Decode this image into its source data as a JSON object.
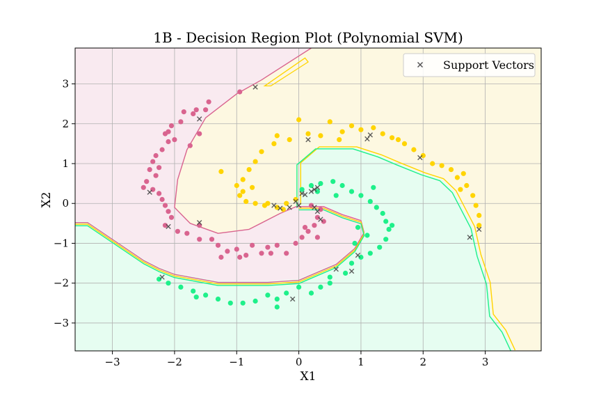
{
  "chart_data": {
    "type": "scatter",
    "title": "1B - Decision Region Plot (Polynomial SVM)",
    "xlabel": "X1",
    "ylabel": "X2",
    "xlim": [
      -3.6,
      3.9
    ],
    "ylim": [
      -3.7,
      3.9
    ],
    "xticks": [
      -3,
      -2,
      -1,
      0,
      1,
      2,
      3
    ],
    "yticks": [
      -3,
      -2,
      -1,
      0,
      1,
      2,
      3
    ],
    "grid": true,
    "legend": {
      "position": "top-right",
      "entries": [
        "Support Vectors"
      ]
    },
    "colors": {
      "pink_class": "#d9648f",
      "yellow_class": "#ffd400",
      "green_class": "#1ef08a",
      "pink_region": "#f9eaf0",
      "yellow_region": "#fdf8e1",
      "green_region": "#e6fdf1",
      "support_vector": "#444444"
    },
    "regions": {
      "pink": [
        [
          -3.6,
          -0.45
        ],
        [
          -3.4,
          -0.45
        ],
        [
          -2.5,
          -1.4
        ],
        [
          -2.25,
          -1.6
        ],
        [
          -2.0,
          -1.75
        ],
        [
          -1.3,
          -1.95
        ],
        [
          -0.5,
          -1.95
        ],
        [
          0.0,
          -1.9
        ],
        [
          0.3,
          -1.7
        ],
        [
          0.6,
          -1.5
        ],
        [
          0.9,
          -1.1
        ],
        [
          1.05,
          -0.7
        ],
        [
          1.0,
          -0.4
        ],
        [
          0.7,
          -0.25
        ],
        [
          0.4,
          -0.05
        ],
        [
          0.0,
          -0.05
        ],
        [
          -0.3,
          -0.25
        ],
        [
          -0.8,
          -0.65
        ],
        [
          -1.3,
          -0.75
        ],
        [
          -1.75,
          -0.5
        ],
        [
          -2.0,
          -0.1
        ],
        [
          -1.95,
          0.6
        ],
        [
          -1.8,
          1.35
        ],
        [
          -1.5,
          2.15
        ],
        [
          -1.0,
          2.75
        ],
        [
          -0.6,
          3.1
        ],
        [
          0.2,
          3.9
        ],
        [
          -3.6,
          3.9
        ]
      ],
      "yellow": [
        [
          0.2,
          3.9
        ],
        [
          -0.6,
          3.1
        ],
        [
          -1.0,
          2.75
        ],
        [
          -1.5,
          2.15
        ],
        [
          -1.8,
          1.35
        ],
        [
          -1.95,
          0.6
        ],
        [
          -2.0,
          -0.1
        ],
        [
          -1.75,
          -0.5
        ],
        [
          -1.3,
          -0.75
        ],
        [
          -0.8,
          -0.65
        ],
        [
          -0.3,
          -0.25
        ],
        [
          0.0,
          -0.05
        ],
        [
          0.0,
          1.0
        ],
        [
          0.3,
          1.4
        ],
        [
          0.9,
          1.4
        ],
        [
          1.3,
          1.2
        ],
        [
          1.6,
          1.0
        ],
        [
          2.0,
          0.75
        ],
        [
          2.3,
          0.6
        ],
        [
          2.5,
          0.3
        ],
        [
          2.6,
          0.0
        ],
        [
          2.8,
          -0.6
        ],
        [
          2.9,
          -1.3
        ],
        [
          3.05,
          -2.0
        ],
        [
          3.1,
          -2.8
        ],
        [
          3.3,
          -3.2
        ],
        [
          3.45,
          -3.7
        ],
        [
          3.9,
          -3.7
        ],
        [
          3.9,
          3.9
        ]
      ],
      "green": [
        [
          -3.6,
          -0.45
        ],
        [
          -3.4,
          -0.45
        ],
        [
          -2.5,
          -1.4
        ],
        [
          -2.25,
          -1.6
        ],
        [
          -2.0,
          -1.75
        ],
        [
          -1.3,
          -1.95
        ],
        [
          -0.5,
          -1.95
        ],
        [
          0.0,
          -1.9
        ],
        [
          0.3,
          -1.7
        ],
        [
          0.6,
          -1.5
        ],
        [
          0.9,
          -1.1
        ],
        [
          1.05,
          -0.7
        ],
        [
          1.0,
          -0.4
        ],
        [
          0.7,
          -0.25
        ],
        [
          0.4,
          -0.05
        ],
        [
          0.0,
          -0.05
        ],
        [
          0.0,
          1.0
        ],
        [
          0.3,
          1.4
        ],
        [
          0.9,
          1.4
        ],
        [
          1.3,
          1.2
        ],
        [
          1.6,
          1.0
        ],
        [
          2.0,
          0.75
        ],
        [
          2.3,
          0.6
        ],
        [
          2.5,
          0.3
        ],
        [
          2.6,
          0.0
        ],
        [
          2.8,
          -0.6
        ],
        [
          2.9,
          -1.3
        ],
        [
          3.05,
          -2.0
        ],
        [
          3.1,
          -2.8
        ],
        [
          3.3,
          -3.2
        ],
        [
          3.45,
          -3.7
        ],
        [
          -3.6,
          -3.7
        ]
      ],
      "yellow_island": [
        [
          -0.55,
          2.95
        ],
        [
          0.1,
          3.65
        ],
        [
          0.15,
          3.55
        ],
        [
          -0.45,
          2.95
        ]
      ]
    },
    "series": [
      {
        "class": "pink",
        "points": [
          [
            -0.95,
            2.8
          ],
          [
            -1.45,
            2.55
          ],
          [
            -1.5,
            2.35
          ],
          [
            -1.65,
            2.35
          ],
          [
            -1.7,
            2.25
          ],
          [
            -1.85,
            2.3
          ],
          [
            -1.9,
            2.05
          ],
          [
            -2.05,
            1.95
          ],
          [
            -2.1,
            1.8
          ],
          [
            -2.15,
            1.75
          ],
          [
            -2.1,
            1.55
          ],
          [
            -2.2,
            1.35
          ],
          [
            -2.3,
            1.2
          ],
          [
            -2.35,
            1.05
          ],
          [
            -2.4,
            0.85
          ],
          [
            -2.3,
            0.7
          ],
          [
            -2.45,
            0.55
          ],
          [
            -2.5,
            0.4
          ],
          [
            -2.35,
            0.35
          ],
          [
            -2.25,
            0.25
          ],
          [
            -2.2,
            0.1
          ],
          [
            -2.15,
            -0.05
          ],
          [
            -2.1,
            -0.2
          ],
          [
            -2.05,
            -0.35
          ],
          [
            -2.15,
            -0.55
          ],
          [
            -1.95,
            -0.7
          ],
          [
            -1.8,
            -0.75
          ],
          [
            -1.6,
            -0.9
          ],
          [
            -1.4,
            -0.9
          ],
          [
            -1.3,
            -1.05
          ],
          [
            -1.15,
            -1.2
          ],
          [
            -1.0,
            -1.15
          ],
          [
            -0.85,
            -1.3
          ],
          [
            -0.75,
            -1.05
          ],
          [
            -0.6,
            -1.25
          ],
          [
            -0.5,
            -1.1
          ],
          [
            -0.35,
            -1.05
          ],
          [
            -0.2,
            -1.25
          ],
          [
            -0.05,
            -1.0
          ],
          [
            0.05,
            -0.85
          ],
          [
            0.15,
            -0.7
          ],
          [
            0.25,
            -0.55
          ],
          [
            0.3,
            -0.35
          ],
          [
            0.35,
            -0.15
          ],
          [
            0.2,
            -0.05
          ],
          [
            -1.6,
            1.75
          ],
          [
            -1.75,
            1.45
          ],
          [
            -2.0,
            1.6
          ],
          [
            -2.25,
            0.9
          ],
          [
            -1.6,
            -0.55
          ],
          [
            -1.25,
            -1.35
          ],
          [
            -0.95,
            -1.35
          ],
          [
            -0.45,
            -1.25
          ],
          [
            0.1,
            -0.6
          ],
          [
            0.4,
            -0.45
          ],
          [
            0.3,
            -0.85
          ]
        ]
      },
      {
        "class": "yellow",
        "points": [
          [
            -0.15,
            1.6
          ],
          [
            0.0,
            2.1
          ],
          [
            0.15,
            1.75
          ],
          [
            0.35,
            1.7
          ],
          [
            0.5,
            2.05
          ],
          [
            0.7,
            1.8
          ],
          [
            0.85,
            1.95
          ],
          [
            1.0,
            1.85
          ],
          [
            1.2,
            1.9
          ],
          [
            1.35,
            1.75
          ],
          [
            1.5,
            1.65
          ],
          [
            1.7,
            1.5
          ],
          [
            1.85,
            1.35
          ],
          [
            2.0,
            1.2
          ],
          [
            2.15,
            1.0
          ],
          [
            2.3,
            0.95
          ],
          [
            2.45,
            0.85
          ],
          [
            2.55,
            0.65
          ],
          [
            2.7,
            0.45
          ],
          [
            2.8,
            0.2
          ],
          [
            2.85,
            -0.05
          ],
          [
            2.9,
            -0.3
          ],
          [
            2.9,
            -0.55
          ],
          [
            -0.6,
            1.3
          ],
          [
            -0.7,
            1.05
          ],
          [
            -0.8,
            0.85
          ],
          [
            -0.9,
            0.6
          ],
          [
            -1.0,
            0.45
          ],
          [
            -0.95,
            0.2
          ],
          [
            -0.85,
            0.05
          ],
          [
            -0.7,
            0.0
          ],
          [
            -0.55,
            -0.05
          ],
          [
            -0.35,
            -0.1
          ],
          [
            -0.2,
            0.0
          ],
          [
            -0.05,
            0.1
          ],
          [
            -0.35,
            1.7
          ],
          [
            -0.4,
            1.5
          ],
          [
            -0.9,
            0.3
          ],
          [
            -0.5,
            0.0
          ],
          [
            -0.25,
            -0.15
          ],
          [
            0.65,
            1.6
          ],
          [
            1.6,
            1.6
          ],
          [
            2.65,
            0.75
          ],
          [
            2.6,
            0.35
          ],
          [
            -1.25,
            0.8
          ],
          [
            -0.75,
            0.4
          ]
        ]
      },
      {
        "class": "green",
        "points": [
          [
            0.05,
            0.35
          ],
          [
            0.2,
            0.45
          ],
          [
            0.35,
            0.5
          ],
          [
            0.55,
            0.55
          ],
          [
            0.7,
            0.45
          ],
          [
            0.85,
            0.3
          ],
          [
            1.0,
            0.2
          ],
          [
            1.15,
            0.05
          ],
          [
            1.25,
            -0.1
          ],
          [
            1.35,
            -0.25
          ],
          [
            1.4,
            -0.45
          ],
          [
            1.45,
            -0.65
          ],
          [
            1.4,
            -0.9
          ],
          [
            1.3,
            -1.1
          ],
          [
            1.15,
            -1.25
          ],
          [
            1.0,
            -1.35
          ],
          [
            0.85,
            -1.5
          ],
          [
            0.75,
            -1.75
          ],
          [
            0.5,
            -1.85
          ],
          [
            0.35,
            -2.1
          ],
          [
            0.2,
            -2.25
          ],
          [
            0.0,
            -2.1
          ],
          [
            -0.2,
            -2.25
          ],
          [
            -0.35,
            -2.4
          ],
          [
            -0.5,
            -2.3
          ],
          [
            -0.7,
            -2.45
          ],
          [
            -0.9,
            -2.5
          ],
          [
            -1.1,
            -2.5
          ],
          [
            -1.3,
            -2.4
          ],
          [
            -1.5,
            -2.3
          ],
          [
            -1.7,
            -2.2
          ],
          [
            -1.9,
            -2.1
          ],
          [
            -2.1,
            -2.0
          ],
          [
            -2.25,
            -1.9
          ],
          [
            0.95,
            -0.6
          ],
          [
            1.1,
            -0.8
          ],
          [
            0.9,
            -1.0
          ],
          [
            0.3,
            0.3
          ],
          [
            0.6,
            0.2
          ],
          [
            1.2,
            0.4
          ],
          [
            0.5,
            -2.0
          ],
          [
            -0.35,
            -2.6
          ],
          [
            -1.65,
            -2.35
          ],
          [
            1.5,
            -0.55
          ]
        ]
      }
    ],
    "support_vectors": [
      [
        -0.7,
        2.92
      ],
      [
        -1.6,
        2.12
      ],
      [
        -2.4,
        0.28
      ],
      [
        -2.1,
        -0.58
      ],
      [
        -1.6,
        -0.48
      ],
      [
        -2.2,
        -1.85
      ],
      [
        0.15,
        1.6
      ],
      [
        1.1,
        1.62
      ],
      [
        1.15,
        1.72
      ],
      [
        1.95,
        1.15
      ],
      [
        2.75,
        -0.85
      ],
      [
        2.9,
        -0.65
      ],
      [
        -0.4,
        -0.05
      ],
      [
        -0.3,
        -0.12
      ],
      [
        -0.15,
        -0.1
      ],
      [
        -0.05,
        0.05
      ],
      [
        0.05,
        0.25
      ],
      [
        0.1,
        0.22
      ],
      [
        0.2,
        0.3
      ],
      [
        0.25,
        0.35
      ],
      [
        0.3,
        -0.2
      ],
      [
        0.35,
        -0.4
      ],
      [
        0.25,
        -0.1
      ],
      [
        0.3,
        0.4
      ],
      [
        0.0,
        -0.05
      ],
      [
        0.6,
        -1.65
      ],
      [
        0.85,
        -1.7
      ],
      [
        0.95,
        -1.3
      ],
      [
        -0.1,
        -2.4
      ]
    ]
  }
}
